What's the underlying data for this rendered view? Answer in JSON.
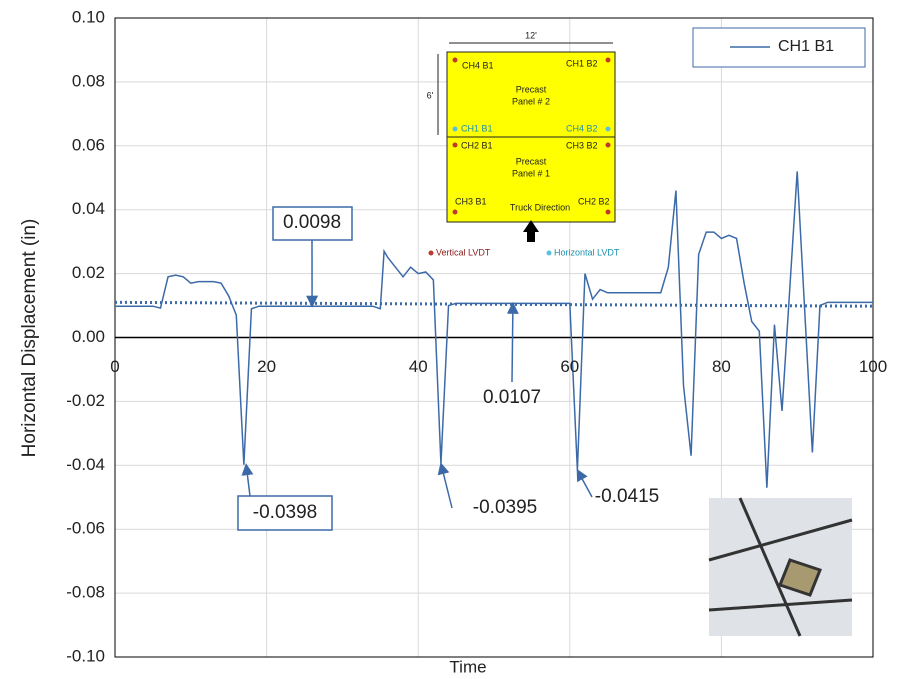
{
  "chart_data": {
    "type": "line",
    "xlabel": "Time",
    "ylabel": "Horizontal Displacement (in)",
    "xlim": [
      0,
      100
    ],
    "ylim": [
      -0.1,
      0.1
    ],
    "xticks": [
      0,
      20,
      40,
      60,
      80,
      100
    ],
    "yticks": [
      {
        "value": 0.1,
        "label": "0.10"
      },
      0.08,
      0.06,
      0.04,
      0.02,
      {
        "value": 0,
        "label": "0.00"
      },
      -0.02,
      -0.04,
      -0.06,
      -0.08,
      {
        "value": -0.1,
        "label": "-0.10"
      }
    ],
    "grid": true,
    "legend": "upper right",
    "series": [
      {
        "name": "CH1 B1",
        "color": "#3c6aa8",
        "x": [
          0,
          5,
          6,
          7,
          8,
          9,
          10,
          11,
          12,
          13,
          14,
          15,
          16,
          17,
          18,
          19,
          25,
          30,
          34,
          35,
          35.5,
          36,
          37,
          38,
          39,
          40,
          41,
          42,
          43,
          44,
          45,
          50,
          55,
          60,
          61,
          62,
          63,
          64,
          65,
          70,
          72,
          73,
          74,
          75,
          76,
          77,
          78,
          79,
          80,
          81,
          82,
          83,
          84,
          85,
          86,
          87,
          88,
          90,
          92,
          93,
          94,
          100
        ],
        "values": [
          0.0098,
          0.0098,
          0.0092,
          0.019,
          0.0195,
          0.019,
          0.017,
          0.0175,
          0.0175,
          0.0175,
          0.017,
          0.013,
          0.007,
          -0.0398,
          0.009,
          0.0098,
          0.0098,
          0.0098,
          0.0098,
          0.009,
          0.027,
          0.025,
          0.022,
          0.019,
          0.022,
          0.02,
          0.0205,
          0.018,
          -0.0395,
          0.01,
          0.0107,
          0.0107,
          0.0107,
          0.0107,
          -0.0415,
          0.02,
          0.012,
          0.015,
          0.014,
          0.014,
          0.014,
          0.022,
          0.046,
          -0.015,
          -0.037,
          0.026,
          0.033,
          0.033,
          0.031,
          0.032,
          0.031,
          0.017,
          0.005,
          0.002,
          -0.047,
          0.004,
          -0.023,
          0.052,
          -0.036,
          0.01,
          0.011,
          0.011
        ]
      }
    ],
    "trendline": {
      "color": "#3c6aa8",
      "x": [
        0,
        100
      ],
      "values": [
        0.011,
        0.0098
      ]
    },
    "annotations": [
      {
        "text": "0.0098",
        "x": 26,
        "y": 0.0098
      },
      {
        "text": "-0.0398",
        "x": 17.3,
        "y": -0.0398
      },
      {
        "text": "-0.0395",
        "x": 43,
        "y": -0.0395
      },
      {
        "text": "-0.0415",
        "x": 61,
        "y": -0.0415
      },
      {
        "text": "0.0107",
        "x": 52.5,
        "y": 0.0107
      }
    ]
  },
  "inset": {
    "width": "12'",
    "height": "6'",
    "ch4b1": "CH4 B1",
    "ch1b2": "CH1 B2",
    "panel2": [
      "Precast",
      "Panel # 2"
    ],
    "ch1b1": "CH1 B1",
    "ch4b2": "CH4 B2",
    "ch2b1": "CH2 B1",
    "ch3b2": "CH3 B2",
    "panel1": [
      "Precast",
      "Panel # 1"
    ],
    "ch3b1": "CH3 B1",
    "truck": "Truck Direction",
    "ch2b2": "CH2 B2",
    "vertical": "Vertical LVDT",
    "horizontal": "Horizontal LVDT"
  }
}
